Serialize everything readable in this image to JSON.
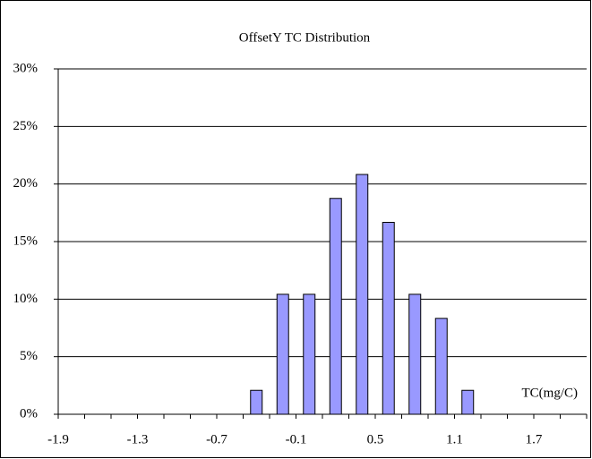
{
  "chart_data": {
    "type": "bar",
    "title": "OffsetY TC Distribution",
    "x_label": "TC(mg/C)",
    "categories": [
      "-1.9",
      null,
      null,
      "-1.3",
      null,
      null,
      "-0.7",
      null,
      null,
      "-0.1",
      null,
      null,
      "0.5",
      null,
      null,
      "1.1",
      null,
      null,
      "1.7",
      null
    ],
    "values": [
      0,
      0,
      0,
      0,
      0,
      0,
      0,
      2.08,
      10.42,
      10.42,
      18.75,
      20.83,
      16.67,
      10.42,
      8.33,
      2.08,
      0,
      0,
      0,
      0
    ],
    "color": "#9999ff",
    "ylim": [
      0,
      30
    ],
    "yticks": [
      {
        "value": 0,
        "label": "0%"
      },
      {
        "value": 5,
        "label": "5%"
      },
      {
        "value": 10,
        "label": "10%"
      },
      {
        "value": 15,
        "label": "15%"
      },
      {
        "value": 20,
        "label": "20%"
      },
      {
        "value": 25,
        "label": "25%"
      },
      {
        "value": 30,
        "label": "30%"
      }
    ],
    "grid": true
  }
}
